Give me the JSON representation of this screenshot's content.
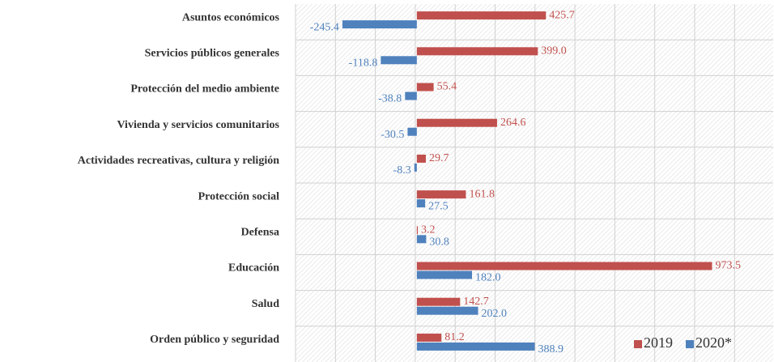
{
  "chart_data": {
    "type": "bar",
    "orientation": "horizontal",
    "categories": [
      "Asuntos económicos",
      "Servicios públicos generales",
      "Protección del medio ambiente",
      "Vivienda y servicios comunitarios",
      "Actividades recreativas, cultura y religión",
      "Protección social",
      "Defensa",
      "Educación",
      "Salud",
      "Orden público y seguridad"
    ],
    "series": [
      {
        "name": "2019",
        "color": "#c0504d",
        "values": [
          425.7,
          399.0,
          55.4,
          264.6,
          29.7,
          161.8,
          3.2,
          973.5,
          142.7,
          81.2
        ],
        "value_labels": [
          "425.7",
          "399.0",
          "55.4",
          "264.6",
          "29.7",
          "161.8",
          "3.2",
          "973.5",
          "142.7",
          "81.2"
        ]
      },
      {
        "name": "2020*",
        "color": "#4f81bd",
        "values": [
          -245.4,
          -118.8,
          -38.8,
          -30.5,
          -8.3,
          27.5,
          30.8,
          182.0,
          202.0,
          388.9
        ],
        "value_labels": [
          "-245.4",
          "-118.8",
          "-38.8",
          "-30.5",
          "-8.3",
          "27.5",
          "30.8",
          "182.0",
          "202.0",
          "388.9"
        ]
      }
    ],
    "xlim": [
      -400,
      1175
    ],
    "legend": "lower right"
  }
}
